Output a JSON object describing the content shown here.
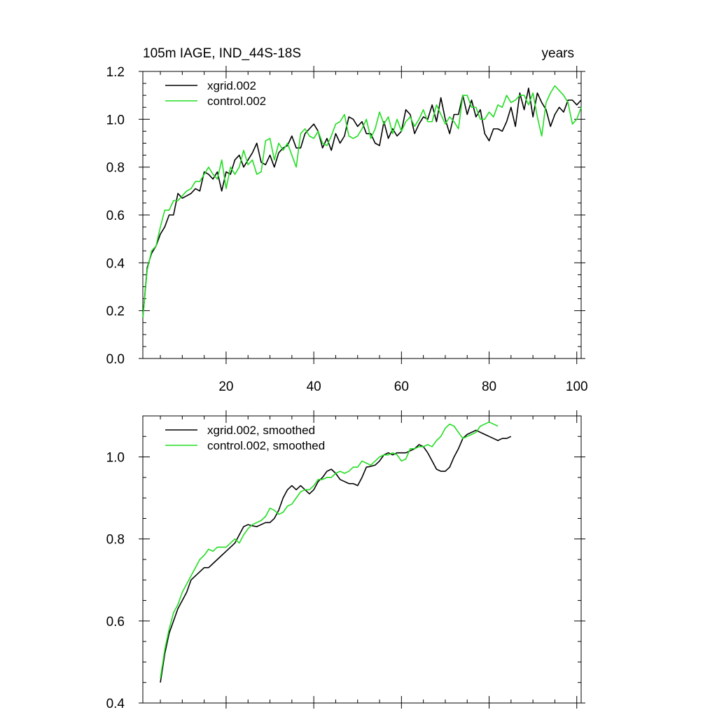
{
  "chart_data": [
    {
      "type": "line",
      "title": "105m IAGE, IND_44S-18S",
      "units": "years",
      "xlim": [
        1,
        101
      ],
      "ylim": [
        0,
        1.2
      ],
      "xticks": [
        20,
        40,
        60,
        80,
        100
      ],
      "yticks": [
        0,
        0.2,
        0.4,
        0.6,
        0.8,
        1.0,
        1.2
      ],
      "x_tick_labels": [
        "20",
        "40",
        "60",
        "80",
        "100"
      ],
      "y_tick_labels": [
        "0.0",
        "0.2",
        "0.4",
        "0.6",
        "0.8",
        "1.0",
        "1.2"
      ],
      "legend_position": "top-left",
      "x_start": 1,
      "series": [
        {
          "name": "xgrid.002",
          "color": "#000000",
          "values": [
            0.17,
            0.38,
            0.44,
            0.47,
            0.52,
            0.55,
            0.6,
            0.6,
            0.69,
            0.67,
            0.68,
            0.69,
            0.71,
            0.7,
            0.78,
            0.77,
            0.75,
            0.78,
            0.7,
            0.78,
            0.77,
            0.83,
            0.85,
            0.8,
            0.83,
            0.86,
            0.9,
            0.82,
            0.81,
            0.85,
            0.8,
            0.86,
            0.88,
            0.89,
            0.93,
            0.88,
            0.88,
            0.94,
            0.96,
            0.98,
            0.95,
            0.88,
            0.92,
            0.87,
            0.94,
            0.9,
            0.93,
            1.01,
            1.0,
            0.97,
            0.99,
            0.94,
            0.94,
            0.9,
            0.89,
            0.99,
            0.92,
            0.96,
            0.93,
            0.95,
            1.04,
            1.02,
            0.94,
            0.98,
            1.01,
            1.0,
            1.06,
            0.99,
            1.09,
            1.0,
            0.94,
            1.02,
            1.02,
            1.1,
            1.02,
            1.08,
            1.01,
            1.04,
            0.94,
            0.91,
            0.96,
            0.96,
            0.95,
            0.99,
            1.05,
            0.97,
            1.11,
            1.04,
            1.13,
            1.01,
            1.11,
            1.07,
            1.04,
            0.97,
            1.02,
            1.05,
            1.03,
            1.08,
            1.08,
            1.06,
            1.08
          ]
        },
        {
          "name": "control.002",
          "color": "#22dd22",
          "values": [
            0.17,
            0.37,
            0.45,
            0.47,
            0.55,
            0.62,
            0.62,
            0.66,
            0.66,
            0.68,
            0.7,
            0.71,
            0.74,
            0.74,
            0.77,
            0.8,
            0.77,
            0.75,
            0.83,
            0.71,
            0.8,
            0.77,
            0.8,
            0.87,
            0.81,
            0.83,
            0.77,
            0.78,
            0.91,
            0.92,
            0.83,
            0.9,
            0.87,
            0.9,
            0.85,
            0.8,
            0.94,
            0.96,
            0.93,
            0.92,
            0.95,
            0.9,
            0.89,
            0.93,
            0.98,
            0.99,
            1.02,
            0.93,
            0.92,
            0.93,
            0.96,
            1.0,
            0.92,
            0.96,
            1.03,
            0.98,
            1.01,
            0.94,
            1.0,
            0.95,
            0.99,
            1.01,
            0.97,
            1.0,
            1.04,
            0.99,
            0.99,
            1.06,
            1.02,
            0.98,
            1.01,
            0.99,
            0.96,
            1.1,
            1.1,
            1.05,
            1.05,
            1.0,
            1.0,
            1.03,
            1.01,
            1.06,
            1.05,
            1.1,
            1.07,
            1.08,
            1.1,
            1.1,
            1.06,
            1.11,
            1.01,
            0.93,
            1.07,
            1.11,
            1.14,
            1.12,
            1.1,
            1.07,
            0.98,
            1.0,
            1.05
          ]
        }
      ]
    },
    {
      "type": "line",
      "xlim": [
        1,
        101
      ],
      "ylim": [
        0.4,
        1.1
      ],
      "xticks": [
        20,
        40,
        60,
        80,
        100
      ],
      "yticks": [
        0.4,
        0.6,
        0.8,
        1.0
      ],
      "y_tick_labels": [
        "0.4",
        "0.6",
        "0.8",
        "1.0"
      ],
      "legend_position": "top-left",
      "x_start": 5,
      "series": [
        {
          "name": "xgrid.002, smoothed",
          "color": "#000000",
          "values": [
            0.45,
            0.52,
            0.57,
            0.6,
            0.63,
            0.65,
            0.67,
            0.7,
            0.71,
            0.72,
            0.73,
            0.73,
            0.74,
            0.75,
            0.76,
            0.77,
            0.78,
            0.79,
            0.81,
            0.83,
            0.835,
            0.832,
            0.83,
            0.835,
            0.84,
            0.84,
            0.85,
            0.87,
            0.9,
            0.92,
            0.93,
            0.92,
            0.93,
            0.92,
            0.91,
            0.92,
            0.94,
            0.95,
            0.965,
            0.97,
            0.96,
            0.945,
            0.94,
            0.935,
            0.935,
            0.93,
            0.95,
            0.975,
            0.977,
            0.98,
            0.99,
            1.005,
            1.01,
            1.005,
            1.01,
            1.01,
            1.01,
            1.015,
            1.02,
            1.03,
            1.025,
            1.01,
            0.99,
            0.97,
            0.965,
            0.965,
            0.975,
            1.0,
            1.02,
            1.045,
            1.055,
            1.06,
            1.065,
            1.06,
            1.055,
            1.05,
            1.045,
            1.04,
            1.045,
            1.045,
            1.05
          ]
        },
        {
          "name": "control.002, smoothed",
          "color": "#22dd22",
          "values": [
            0.46,
            0.53,
            0.58,
            0.62,
            0.64,
            0.67,
            0.69,
            0.71,
            0.73,
            0.75,
            0.76,
            0.775,
            0.77,
            0.78,
            0.78,
            0.78,
            0.79,
            0.8,
            0.79,
            0.81,
            0.825,
            0.835,
            0.84,
            0.845,
            0.855,
            0.875,
            0.87,
            0.86,
            0.865,
            0.88,
            0.885,
            0.9,
            0.915,
            0.92,
            0.92,
            0.93,
            0.945,
            0.945,
            0.95,
            0.95,
            0.96,
            0.965,
            0.96,
            0.965,
            0.975,
            0.975,
            0.99,
            0.985,
            0.98,
            0.99,
            1.0,
            1.005,
            1.005,
            1.01,
            1.005,
            0.99,
            0.995,
            1.02,
            1.02,
            1.025,
            1.025,
            1.03,
            1.025,
            1.04,
            1.05,
            1.07,
            1.08,
            1.075,
            1.06,
            1.045,
            1.05,
            1.055,
            1.06,
            1.075,
            1.08,
            1.085,
            1.08,
            1.075
          ]
        }
      ]
    }
  ]
}
